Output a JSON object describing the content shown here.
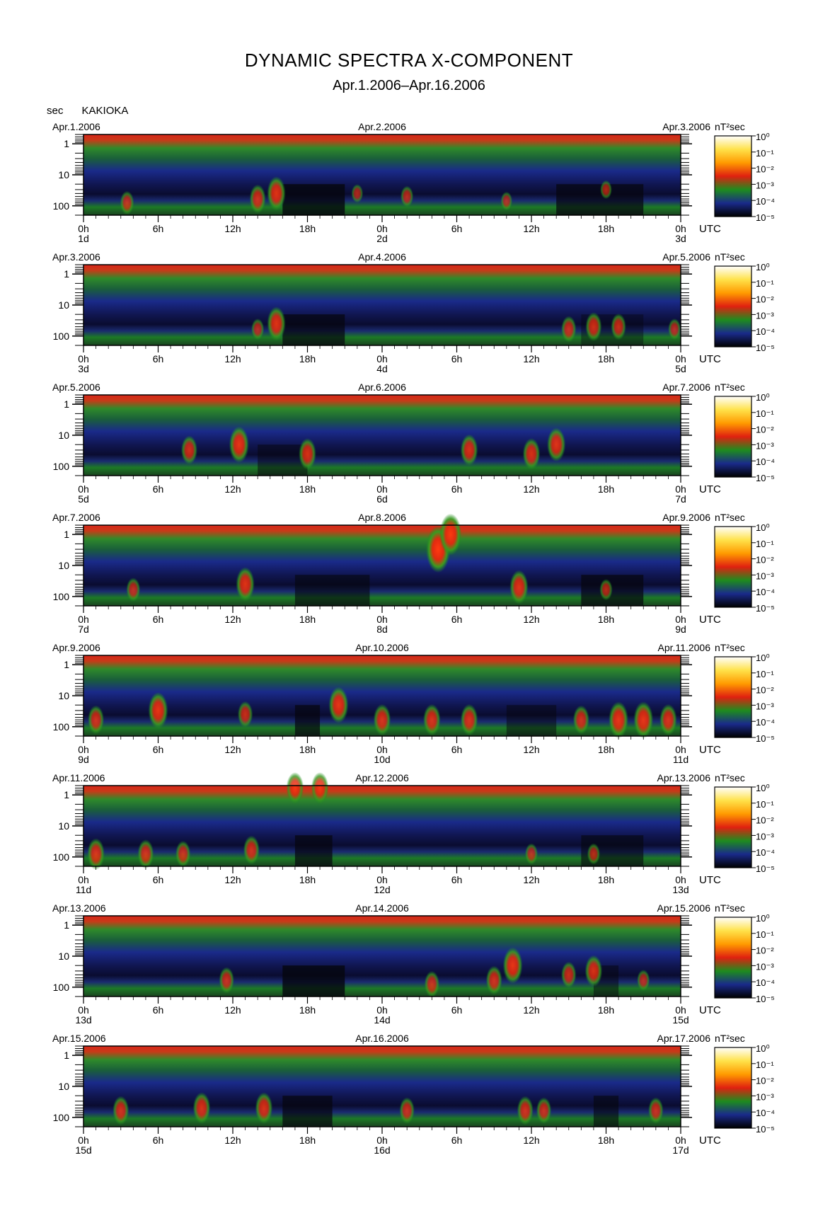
{
  "title": "DYNAMIC SPECTRA X-COMPONENT",
  "subtitle": "Apr.1.2006–Apr.16.2006",
  "y_unit": "sec",
  "station": "KAKIOKA",
  "colorbar_unit": "nT²sec",
  "utc_label": "UTC",
  "hour_ticks": [
    "0h",
    "6h",
    "12h",
    "18h",
    "0h",
    "6h",
    "12h",
    "18h",
    "0h"
  ],
  "period_ticks": [
    "1",
    "10",
    "100"
  ],
  "colorbar_ticks": [
    "10⁰",
    "10⁻¹",
    "10⁻²",
    "10⁻³",
    "10⁻⁴",
    "10⁻⁵"
  ],
  "chart_data": {
    "type": "heatmap",
    "title": "DYNAMIC SPECTRA X-COMPONENT",
    "subtitle": "Apr.1.2006–Apr.16.2006",
    "station": "KAKIOKA",
    "x_axis": "UTC hours (48 h per panel)",
    "y_axis": "period (sec), log scale, 0.5 to 200",
    "ylim": [
      0.5,
      200
    ],
    "y_log": true,
    "color_scale": {
      "unit": "nT²sec",
      "min": 1e-05,
      "max": 1,
      "log": true,
      "colors": [
        "#000000",
        "#1a2a8a",
        "#1e8c1e",
        "#e02010",
        "#ff9a00",
        "#ffe24a",
        "#ffffff"
      ]
    },
    "panels": [
      {
        "date_left": "Apr.1.2006",
        "date_mid": "Apr.2.2006",
        "date_right": "Apr.3.2006",
        "day_left": "1d",
        "day_mid": "2d",
        "day_right": "3d",
        "events": [
          [
            3.5,
            80,
            0.5
          ],
          [
            14,
            60,
            0.7
          ],
          [
            15.5,
            40,
            0.9
          ],
          [
            22,
            40,
            0.3
          ],
          [
            26,
            50,
            0.4
          ],
          [
            34,
            70,
            0.3
          ],
          [
            42,
            30,
            0.3
          ]
        ],
        "quiet": [
          [
            16,
            21,
            0.8
          ],
          [
            38,
            45,
            0.7
          ]
        ]
      },
      {
        "date_left": "Apr.3.2006",
        "date_mid": "Apr.4.2006",
        "date_right": "Apr.5.2006",
        "day_left": "3d",
        "day_mid": "4d",
        "day_right": "5d",
        "events": [
          [
            15.5,
            40,
            0.9
          ],
          [
            14,
            60,
            0.4
          ],
          [
            39,
            60,
            0.6
          ],
          [
            41,
            50,
            0.7
          ],
          [
            43,
            50,
            0.6
          ],
          [
            47.5,
            60,
            0.4
          ]
        ],
        "quiet": [
          [
            16,
            21,
            0.7
          ],
          [
            40,
            45,
            0.4
          ]
        ]
      },
      {
        "date_left": "Apr.5.2006",
        "date_mid": "Apr.6.2006",
        "date_right": "Apr.7.2006",
        "day_left": "5d",
        "day_mid": "6d",
        "day_right": "7d",
        "events": [
          [
            8.5,
            30,
            0.7
          ],
          [
            12.5,
            20,
            1.0
          ],
          [
            18,
            40,
            0.8
          ],
          [
            31,
            30,
            0.8
          ],
          [
            36,
            40,
            0.8
          ],
          [
            38,
            20,
            0.9
          ]
        ],
        "quiet": [
          [
            14,
            18,
            0.5
          ]
        ]
      },
      {
        "date_left": "Apr.7.2006",
        "date_mid": "Apr.8.2006",
        "date_right": "Apr.9.2006",
        "day_left": "7d",
        "day_mid": "8d",
        "day_right": "9d",
        "events": [
          [
            4,
            60,
            0.5
          ],
          [
            13,
            40,
            0.9
          ],
          [
            28.5,
            3,
            1.4
          ],
          [
            29.5,
            1,
            1.2
          ],
          [
            35,
            50,
            0.9
          ],
          [
            42,
            60,
            0.4
          ]
        ],
        "quiet": [
          [
            17,
            23,
            0.6
          ],
          [
            40,
            45,
            0.7
          ]
        ]
      },
      {
        "date_left": "Apr.9.2006",
        "date_mid": "Apr.10.2006",
        "date_right": "Apr.11.2006",
        "day_left": "9d",
        "day_mid": "10d",
        "day_right": "11d",
        "events": [
          [
            1,
            60,
            0.7
          ],
          [
            6,
            30,
            1.0
          ],
          [
            13,
            40,
            0.6
          ],
          [
            20.5,
            20,
            1.0
          ],
          [
            24,
            60,
            0.8
          ],
          [
            28,
            60,
            0.8
          ],
          [
            31,
            60,
            0.8
          ],
          [
            40,
            60,
            0.7
          ],
          [
            43,
            60,
            1.0
          ],
          [
            45,
            60,
            1.0
          ],
          [
            47,
            60,
            0.8
          ]
        ],
        "quiet": [
          [
            17,
            19,
            0.7
          ],
          [
            34,
            38,
            0.5
          ]
        ]
      },
      {
        "date_left": "Apr.11.2006",
        "date_mid": "Apr.12.2006",
        "date_right": "Apr.13.2006",
        "day_left": "11d",
        "day_mid": "12d",
        "day_right": "13d",
        "events": [
          [
            1,
            80,
            0.8
          ],
          [
            5,
            80,
            0.7
          ],
          [
            8,
            80,
            0.6
          ],
          [
            13.5,
            60,
            0.7
          ],
          [
            17,
            0.6,
            0.8
          ],
          [
            19,
            0.6,
            0.8
          ],
          [
            36,
            80,
            0.4
          ],
          [
            41,
            80,
            0.4
          ]
        ],
        "quiet": [
          [
            17,
            20,
            0.7
          ],
          [
            40,
            45,
            0.6
          ]
        ]
      },
      {
        "date_left": "Apr.13.2006",
        "date_mid": "Apr.14.2006",
        "date_right": "Apr.15.2006",
        "day_left": "13d",
        "day_mid": "14d",
        "day_right": "15d",
        "events": [
          [
            11.5,
            60,
            0.6
          ],
          [
            28,
            80,
            0.6
          ],
          [
            33,
            60,
            0.7
          ],
          [
            34.5,
            20,
            1.0
          ],
          [
            39,
            40,
            0.6
          ],
          [
            41,
            30,
            0.8
          ],
          [
            45,
            60,
            0.4
          ]
        ],
        "quiet": [
          [
            16,
            21,
            0.8
          ],
          [
            41,
            43,
            0.5
          ]
        ]
      },
      {
        "date_left": "Apr.15.2006",
        "date_mid": "Apr.16.2006",
        "date_right": "Apr.17.2006",
        "day_left": "15d",
        "day_mid": "16d",
        "day_right": "17d",
        "events": [
          [
            3,
            60,
            0.7
          ],
          [
            9.5,
            50,
            0.8
          ],
          [
            14.5,
            50,
            0.8
          ],
          [
            26,
            60,
            0.6
          ],
          [
            35.5,
            60,
            0.7
          ],
          [
            37,
            60,
            0.6
          ],
          [
            46,
            60,
            0.6
          ]
        ],
        "quiet": [
          [
            16,
            20,
            0.7
          ],
          [
            41,
            43,
            0.6
          ]
        ]
      }
    ]
  }
}
